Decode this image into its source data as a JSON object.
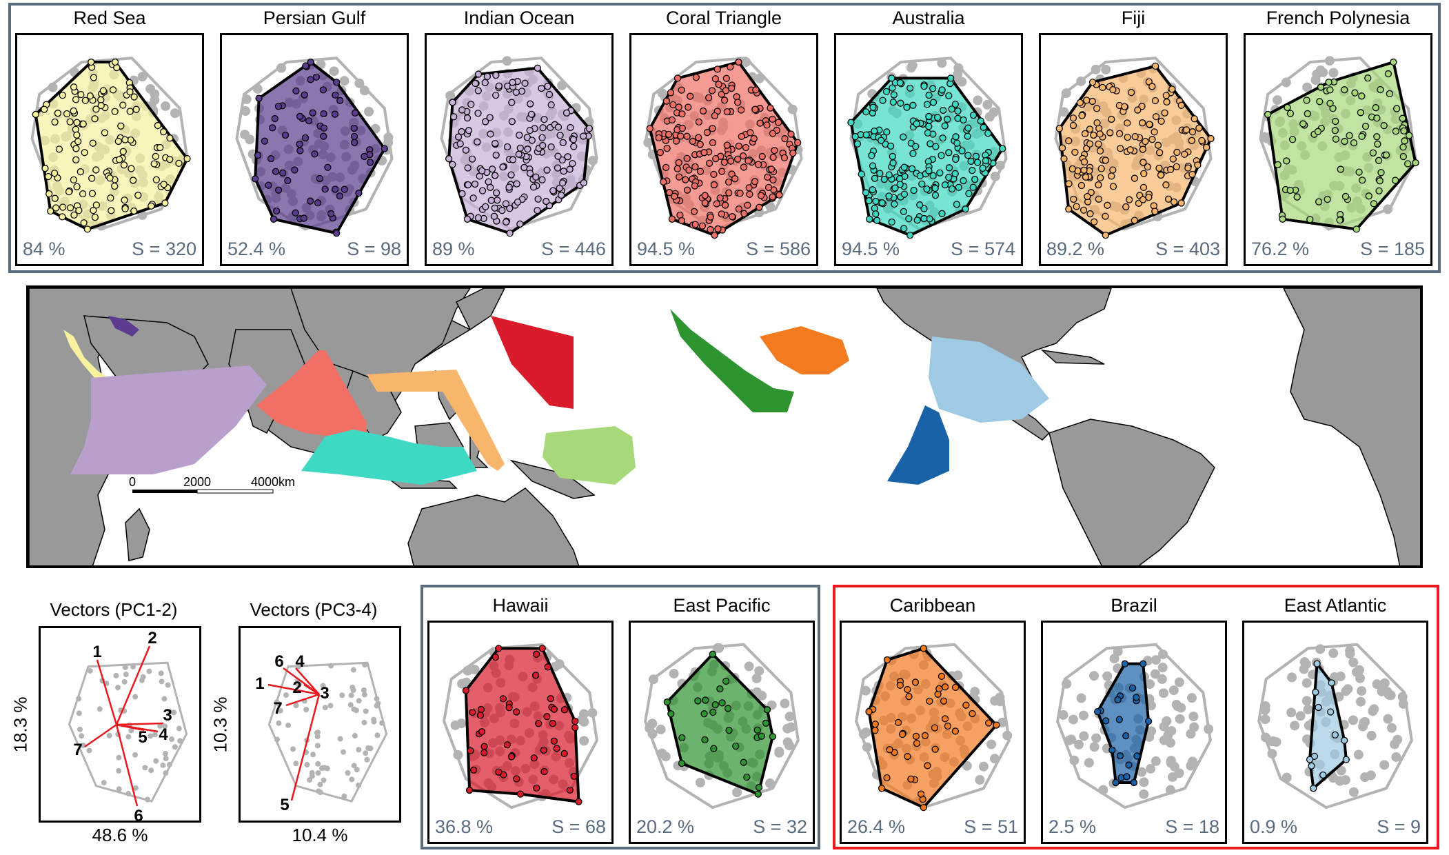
{
  "colors": {
    "group_border": "#5a6b7d",
    "atlantic_border": "#e8191f",
    "hull_grey": "#b3b3b3",
    "land": "#999999",
    "vector": "#e8191f"
  },
  "top_regions": [
    {
      "name": "Red Sea",
      "pct": "84 %",
      "s": "S = 320",
      "color": "#f7f1a0"
    },
    {
      "name": "Persian Gulf",
      "pct": "52.4 %",
      "s": "S = 98",
      "color": "#5b3c8f"
    },
    {
      "name": "Indian Ocean",
      "pct": "89 %",
      "s": "S = 446",
      "color": "#c8b1d8"
    },
    {
      "name": "Coral Triangle",
      "pct": "94.5 %",
      "s": "S = 586",
      "color": "#f26f66"
    },
    {
      "name": "Australia",
      "pct": "94.5 %",
      "s": "S = 574",
      "color": "#3fd8c2"
    },
    {
      "name": "Fiji",
      "pct": "89.2 %",
      "s": "S = 403",
      "color": "#f8b66d"
    },
    {
      "name": "French Polynesia",
      "pct": "76.2 %",
      "s": "S = 185",
      "color": "#a7d87a"
    }
  ],
  "pacific_regions": [
    {
      "name": "Hawaii",
      "pct": "36.8 %",
      "s": "S = 68",
      "color": "#d91b2b"
    },
    {
      "name": "East Pacific",
      "pct": "20.2 %",
      "s": "S = 32",
      "color": "#2e9430"
    }
  ],
  "atlantic_regions": [
    {
      "name": "Caribbean",
      "pct": "26.4 %",
      "s": "S = 51",
      "color": "#f47a1f"
    },
    {
      "name": "Brazil",
      "pct": "2.5 %",
      "s": "S = 18",
      "color": "#1a62a8"
    },
    {
      "name": "East Atlantic",
      "pct": "0.9 %",
      "s": "S = 9",
      "color": "#9ecbe3"
    }
  ],
  "vectors": [
    {
      "title": "Vectors (PC1-2)",
      "xlabel": "48.6 %",
      "ylabel": "18.3 %",
      "labels": [
        "1",
        "2",
        "3",
        "4",
        "5",
        "6",
        "7"
      ]
    },
    {
      "title": "Vectors (PC3-4)",
      "xlabel": "10.4 %",
      "ylabel": "10.3 %",
      "labels": [
        "1",
        "2",
        "3",
        "4",
        "5",
        "6",
        "7"
      ]
    }
  ],
  "map": {
    "scale_labels": [
      "0",
      "2000",
      "4000km"
    ]
  }
}
